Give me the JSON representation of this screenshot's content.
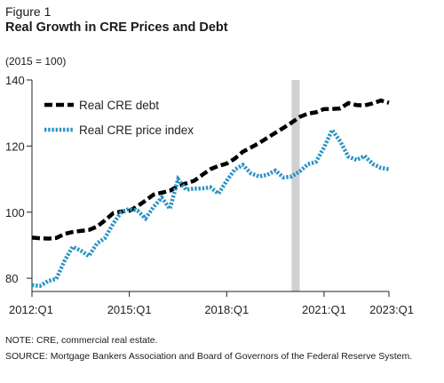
{
  "figure_label": "Figure 1",
  "title": "Real Growth in CRE Prices and Debt",
  "units": "(2015 = 100)",
  "note": "NOTE: CRE, commercial real estate.",
  "source": "SOURCE:  Mortgage Bankers Association and Board of Governors of the Federal Reserve System.",
  "chart_data": {
    "type": "line",
    "x": [
      "2012:Q1",
      "2012:Q2",
      "2012:Q3",
      "2012:Q4",
      "2013:Q1",
      "2013:Q2",
      "2013:Q3",
      "2013:Q4",
      "2014:Q1",
      "2014:Q2",
      "2014:Q3",
      "2014:Q4",
      "2015:Q1",
      "2015:Q2",
      "2015:Q3",
      "2015:Q4",
      "2016:Q1",
      "2016:Q2",
      "2016:Q3",
      "2016:Q4",
      "2017:Q1",
      "2017:Q2",
      "2017:Q3",
      "2017:Q4",
      "2018:Q1",
      "2018:Q2",
      "2018:Q3",
      "2018:Q4",
      "2019:Q1",
      "2019:Q2",
      "2019:Q3",
      "2019:Q4",
      "2020:Q1",
      "2020:Q2",
      "2020:Q3",
      "2020:Q4",
      "2021:Q1",
      "2021:Q2",
      "2021:Q3",
      "2021:Q4",
      "2022:Q1",
      "2022:Q2",
      "2022:Q3",
      "2022:Q4",
      "2023:Q1"
    ],
    "xticks": [
      "2012:Q1",
      "2015:Q1",
      "2018:Q1",
      "2021:Q1",
      "2023:Q1"
    ],
    "yticks": [
      80,
      100,
      120,
      140
    ],
    "ylim": [
      76,
      140
    ],
    "shaded_region": {
      "start": "2020:Q1",
      "end": "2020:Q2",
      "color": "#cfd0d2"
    },
    "series": [
      {
        "name": "Real CRE debt",
        "color": "#000000",
        "style": "dashed",
        "values": [
          92.3,
          92.1,
          92.0,
          92.2,
          93.4,
          94.0,
          94.3,
          94.6,
          95.6,
          97.5,
          99.7,
          100.2,
          100.4,
          101.8,
          103.5,
          105.3,
          105.9,
          106.5,
          107.9,
          108.7,
          109.5,
          111.3,
          113.0,
          114.0,
          114.7,
          116.2,
          118.3,
          119.6,
          120.9,
          122.5,
          124.0,
          125.5,
          127.1,
          128.8,
          129.8,
          130.2,
          131.2,
          131.2,
          131.4,
          133.0,
          132.4,
          132.3,
          132.9,
          133.8,
          133.1
        ]
      },
      {
        "name": "Real CRE price index",
        "color": "#2b93c4",
        "style": "dotted",
        "values": [
          77.9,
          77.7,
          79.2,
          79.8,
          85.2,
          89.5,
          88.4,
          86.7,
          90.5,
          92.2,
          96.5,
          100.0,
          101.0,
          100.5,
          98.1,
          101.6,
          104.4,
          101.0,
          110.0,
          106.8,
          107.1,
          107.2,
          107.5,
          105.6,
          109.5,
          112.9,
          114.3,
          111.7,
          110.8,
          111.3,
          112.6,
          110.5,
          110.8,
          112.3,
          114.5,
          115.2,
          119.6,
          124.9,
          121.4,
          116.8,
          115.8,
          117.0,
          114.6,
          113.4,
          113.0
        ]
      }
    ]
  }
}
